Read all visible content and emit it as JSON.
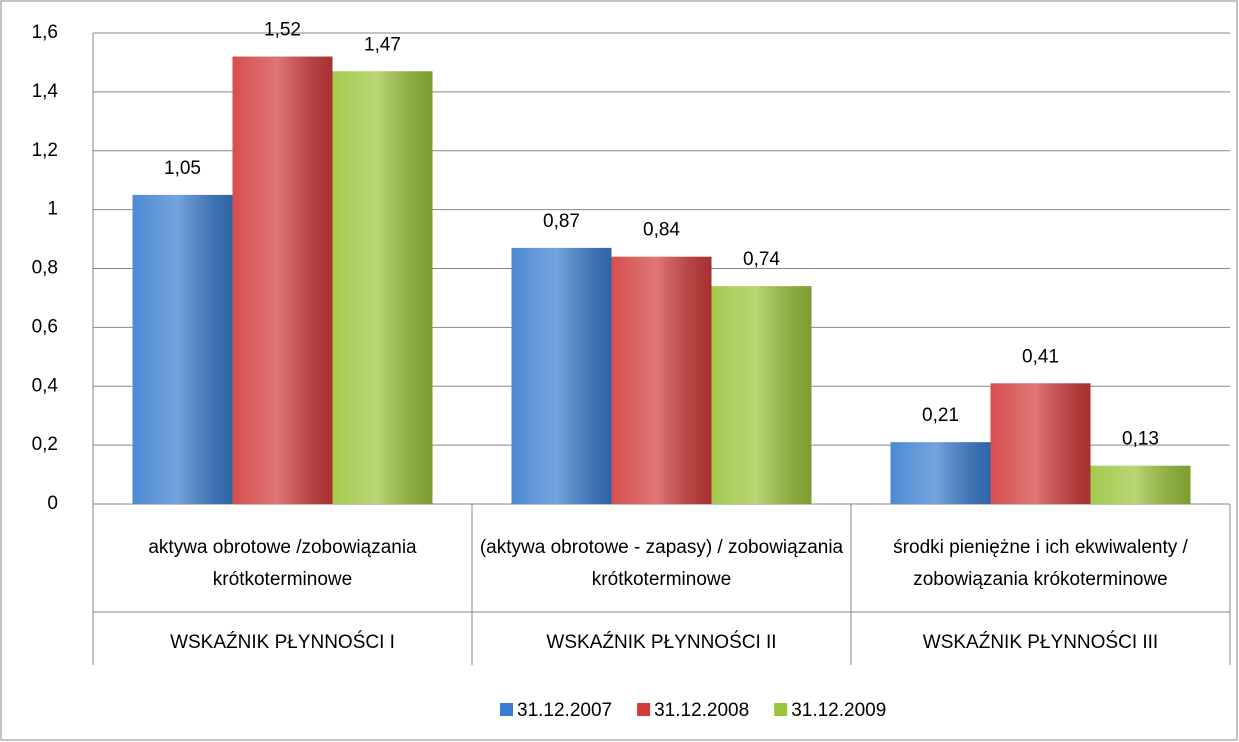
{
  "chart_data": {
    "type": "bar",
    "categories": [
      "aktywa obrotowe /zobowiązania krótkoterminowe",
      "(aktywa obrotowe - zapasy) / zobowiązania krótkoterminowe",
      "środki pieniężne i ich ekwiwalenty / zobowiązania krókoterminowe"
    ],
    "category_groups": [
      "WSKAŹNIK PŁYNNOŚCI I",
      "WSKAŹNIK PŁYNNOŚCI II",
      "WSKAŹNIK PŁYNNOŚCI III"
    ],
    "series": [
      {
        "name": "31.12.2007",
        "color": "#3a7dd0",
        "values": [
          1.05,
          0.87,
          0.21
        ],
        "value_labels": [
          "1,05",
          "0,87",
          "0,21"
        ]
      },
      {
        "name": "31.12.2008",
        "color": "#d23b3b",
        "values": [
          1.52,
          0.84,
          0.41
        ],
        "value_labels": [
          "1,52",
          "0,84",
          "0,41"
        ]
      },
      {
        "name": "31.12.2009",
        "color": "#9ac43a",
        "values": [
          1.47,
          0.74,
          0.13
        ],
        "value_labels": [
          "1,47",
          "0,74",
          "0,13"
        ]
      }
    ],
    "ylim": [
      0,
      1.6
    ],
    "yticks": [
      0,
      {
        "value": 0.2,
        "label": "0,2"
      },
      {
        "value": 0.4,
        "label": "0,4"
      },
      {
        "value": 0.6,
        "label": "0,6"
      },
      {
        "value": 0.8,
        "label": "0,8"
      },
      1,
      {
        "value": 1.2,
        "label": "1,2"
      },
      {
        "value": 1.4,
        "label": "1,4"
      },
      {
        "value": 1.6,
        "label": "1,6"
      }
    ],
    "grid": true,
    "legend": "bottom"
  }
}
